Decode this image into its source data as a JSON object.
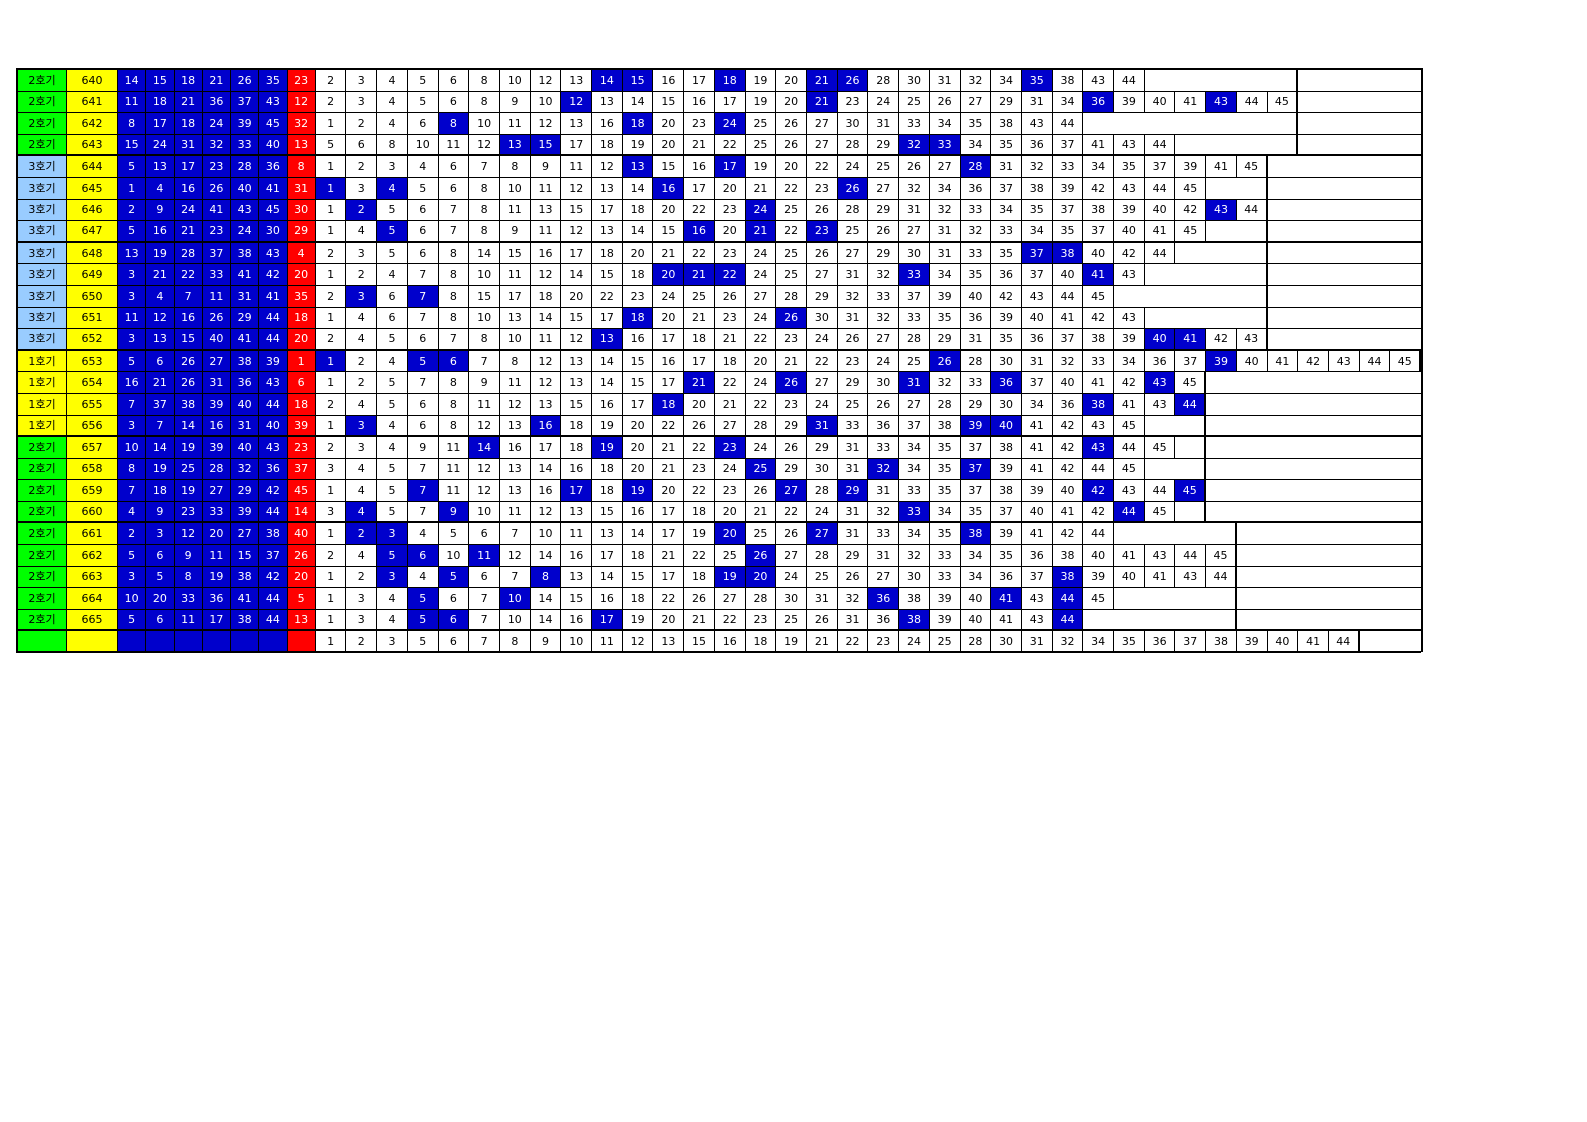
{
  "palette": {
    "machine_1": "#FFFF00",
    "machine_2": "#00FF00",
    "machine_3": "#99CCFF",
    "round_bg": "#FFFF00",
    "win_bg": "#0000CC",
    "bonus_bg": "#FF0000",
    "hl_bg": "#0000CC",
    "grid": "#000000"
  },
  "rows": [
    {
      "machine": "2호기",
      "round": "640",
      "win": [
        14,
        15,
        18,
        21,
        26,
        35
      ],
      "bonus": 23,
      "seq": [
        2,
        3,
        4,
        5,
        6,
        8,
        10,
        12,
        13,
        14,
        15,
        16,
        17,
        18,
        19,
        20,
        21,
        26,
        28,
        30,
        31,
        32,
        34,
        35,
        38,
        43,
        44
      ],
      "hl": [
        14,
        15,
        18,
        21,
        26,
        35
      ],
      "pad": 5,
      "grp_end": false
    },
    {
      "machine": "2호기",
      "round": "641",
      "win": [
        11,
        18,
        21,
        36,
        37,
        43
      ],
      "bonus": 12,
      "seq": [
        2,
        3,
        4,
        5,
        6,
        8,
        9,
        10,
        12,
        13,
        14,
        15,
        16,
        17,
        19,
        20,
        21,
        23,
        24,
        25,
        26,
        27,
        29,
        31,
        34,
        36,
        39,
        40,
        41,
        43,
        44,
        45
      ],
      "hl": [
        12,
        21,
        36,
        43
      ],
      "pad": 0,
      "grp_end": false
    },
    {
      "machine": "2호기",
      "round": "642",
      "win": [
        8,
        17,
        18,
        24,
        39,
        45
      ],
      "bonus": 32,
      "seq": [
        1,
        2,
        4,
        6,
        8,
        10,
        11,
        12,
        13,
        16,
        18,
        20,
        23,
        24,
        25,
        26,
        27,
        30,
        31,
        33,
        34,
        35,
        38,
        43,
        44
      ],
      "hl": [
        8,
        18,
        24
      ],
      "pad": 7,
      "grp_end": false
    },
    {
      "machine": "2호기",
      "round": "643",
      "win": [
        15,
        24,
        31,
        32,
        33,
        40
      ],
      "bonus": 13,
      "seq": [
        5,
        6,
        8,
        10,
        11,
        12,
        13,
        15,
        17,
        18,
        19,
        20,
        21,
        22,
        25,
        26,
        27,
        28,
        29,
        32,
        33,
        34,
        35,
        36,
        37,
        41,
        43,
        44
      ],
      "hl": [
        13,
        15,
        32,
        33
      ],
      "pad": 4,
      "grp_end": true
    },
    {
      "machine": "3호기",
      "round": "644",
      "win": [
        5,
        13,
        17,
        23,
        28,
        36
      ],
      "bonus": 8,
      "seq": [
        1,
        2,
        3,
        4,
        6,
        7,
        8,
        9,
        11,
        12,
        13,
        15,
        16,
        17,
        19,
        20,
        22,
        24,
        25,
        26,
        27,
        28,
        31,
        32,
        33,
        34,
        35,
        37,
        39,
        41,
        45
      ],
      "hl": [
        13,
        17,
        28
      ],
      "pad": 0,
      "grp_end": false
    },
    {
      "machine": "3호기",
      "round": "645",
      "win": [
        1,
        4,
        16,
        26,
        40,
        41
      ],
      "bonus": 31,
      "seq": [
        1,
        3,
        4,
        5,
        6,
        8,
        10,
        11,
        12,
        13,
        14,
        16,
        17,
        20,
        21,
        22,
        23,
        26,
        27,
        32,
        34,
        36,
        37,
        38,
        39,
        42,
        43,
        44,
        45
      ],
      "hl": [
        1,
        4,
        16,
        26
      ],
      "pad": 2,
      "grp_end": false
    },
    {
      "machine": "3호기",
      "round": "646",
      "win": [
        2,
        9,
        24,
        41,
        43,
        45
      ],
      "bonus": 30,
      "seq": [
        1,
        2,
        5,
        6,
        7,
        8,
        11,
        13,
        15,
        17,
        18,
        20,
        22,
        23,
        24,
        25,
        26,
        28,
        29,
        31,
        32,
        33,
        34,
        35,
        37,
        38,
        39,
        40,
        42,
        43,
        44
      ],
      "hl": [
        2,
        24,
        43
      ],
      "pad": 0,
      "grp_end": false
    },
    {
      "machine": "3호기",
      "round": "647",
      "win": [
        5,
        16,
        21,
        23,
        24,
        30
      ],
      "bonus": 29,
      "seq": [
        1,
        4,
        5,
        6,
        7,
        8,
        9,
        11,
        12,
        13,
        14,
        15,
        16,
        20,
        21,
        22,
        23,
        25,
        26,
        27,
        31,
        32,
        33,
        34,
        35,
        37,
        40,
        41,
        45
      ],
      "hl": [
        5,
        16,
        21,
        23
      ],
      "pad": 2,
      "grp_end": true
    },
    {
      "machine": "3호기",
      "round": "648",
      "win": [
        13,
        19,
        28,
        37,
        38,
        43
      ],
      "bonus": 4,
      "seq": [
        2,
        3,
        5,
        6,
        8,
        14,
        15,
        16,
        17,
        18,
        20,
        21,
        22,
        23,
        24,
        25,
        26,
        27,
        29,
        30,
        31,
        33,
        35,
        37,
        38,
        40,
        42,
        44
      ],
      "hl": [
        37,
        38
      ],
      "pad": 3,
      "grp_end": false
    },
    {
      "machine": "3호기",
      "round": "649",
      "win": [
        3,
        21,
        22,
        33,
        41,
        42
      ],
      "bonus": 20,
      "seq": [
        1,
        2,
        4,
        7,
        8,
        10,
        11,
        12,
        14,
        15,
        18,
        20,
        21,
        22,
        24,
        25,
        27,
        31,
        32,
        33,
        34,
        35,
        36,
        37,
        40,
        41,
        43
      ],
      "hl": [
        20,
        21,
        22,
        33,
        41
      ],
      "pad": 4,
      "grp_end": false
    },
    {
      "machine": "3호기",
      "round": "650",
      "win": [
        3,
        4,
        7,
        11,
        31,
        41
      ],
      "bonus": 35,
      "seq": [
        2,
        3,
        6,
        7,
        8,
        15,
        17,
        18,
        20,
        22,
        23,
        24,
        25,
        26,
        27,
        28,
        29,
        32,
        33,
        37,
        39,
        40,
        42,
        43,
        44,
        45
      ],
      "hl": [
        3,
        7
      ],
      "pad": 5,
      "grp_end": false
    },
    {
      "machine": "3호기",
      "round": "651",
      "win": [
        11,
        12,
        16,
        26,
        29,
        44
      ],
      "bonus": 18,
      "seq": [
        1,
        4,
        6,
        7,
        8,
        10,
        13,
        14,
        15,
        17,
        18,
        20,
        21,
        23,
        24,
        26,
        30,
        31,
        32,
        33,
        35,
        36,
        39,
        40,
        41,
        42,
        43
      ],
      "hl": [
        18,
        26
      ],
      "pad": 4,
      "grp_end": false
    },
    {
      "machine": "3호기",
      "round": "652",
      "win": [
        3,
        13,
        15,
        40,
        41,
        44
      ],
      "bonus": 20,
      "seq": [
        2,
        4,
        5,
        6,
        7,
        8,
        10,
        11,
        12,
        13,
        16,
        17,
        18,
        21,
        22,
        23,
        24,
        26,
        27,
        28,
        29,
        31,
        35,
        36,
        37,
        38,
        39,
        40,
        41,
        42,
        43
      ],
      "hl": [
        13,
        40,
        41
      ],
      "pad": 0,
      "grp_end": true
    },
    {
      "machine": "1호기",
      "round": "653",
      "win": [
        5,
        6,
        26,
        27,
        38,
        39
      ],
      "bonus": 1,
      "seq": [
        1,
        2,
        4,
        5,
        6,
        7,
        8,
        12,
        13,
        14,
        15,
        16,
        17,
        18,
        20,
        21,
        22,
        23,
        24,
        25,
        26,
        28,
        30,
        31,
        32,
        33,
        34,
        36,
        37,
        39,
        40,
        41,
        42,
        43,
        44,
        45
      ],
      "hl": [
        1,
        5,
        6,
        26,
        39
      ],
      "pad": 0,
      "grp_end": false
    },
    {
      "machine": "1호기",
      "round": "654",
      "win": [
        16,
        21,
        26,
        31,
        36,
        43
      ],
      "bonus": 6,
      "seq": [
        1,
        2,
        5,
        7,
        8,
        9,
        11,
        12,
        13,
        14,
        15,
        17,
        21,
        22,
        24,
        26,
        27,
        29,
        30,
        31,
        32,
        33,
        36,
        37,
        40,
        41,
        42,
        43,
        45
      ],
      "hl": [
        21,
        26,
        31,
        36,
        43
      ],
      "pad": 0,
      "grp_end": false
    },
    {
      "machine": "1호기",
      "round": "655",
      "win": [
        7,
        37,
        38,
        39,
        40,
        44
      ],
      "bonus": 18,
      "seq": [
        2,
        4,
        5,
        6,
        8,
        11,
        12,
        13,
        15,
        16,
        17,
        18,
        20,
        21,
        22,
        23,
        24,
        25,
        26,
        27,
        28,
        29,
        30,
        34,
        36,
        38,
        41,
        43,
        44
      ],
      "hl": [
        18,
        38,
        44
      ],
      "pad": 0,
      "grp_end": false
    },
    {
      "machine": "1호기",
      "round": "656",
      "win": [
        3,
        7,
        14,
        16,
        31,
        40
      ],
      "bonus": 39,
      "seq": [
        1,
        3,
        4,
        6,
        8,
        12,
        13,
        16,
        18,
        19,
        20,
        22,
        26,
        27,
        28,
        29,
        31,
        33,
        36,
        37,
        38,
        39,
        40,
        41,
        42,
        43,
        45
      ],
      "hl": [
        3,
        16,
        31,
        39,
        40
      ],
      "pad": 2,
      "grp_end": true
    },
    {
      "machine": "2호기",
      "round": "657",
      "win": [
        10,
        14,
        19,
        39,
        40,
        43
      ],
      "bonus": 23,
      "seq": [
        2,
        3,
        4,
        9,
        11,
        14,
        16,
        17,
        18,
        19,
        20,
        21,
        22,
        23,
        24,
        26,
        29,
        31,
        33,
        34,
        35,
        37,
        38,
        41,
        42,
        43,
        44,
        45
      ],
      "hl": [
        14,
        19,
        23,
        43
      ],
      "pad": 1,
      "grp_end": false
    },
    {
      "machine": "2호기",
      "round": "658",
      "win": [
        8,
        19,
        25,
        28,
        32,
        36
      ],
      "bonus": 37,
      "seq": [
        3,
        4,
        5,
        7,
        11,
        12,
        13,
        14,
        16,
        18,
        20,
        21,
        23,
        24,
        25,
        29,
        30,
        31,
        32,
        34,
        35,
        37,
        39,
        41,
        42,
        44,
        45
      ],
      "hl": [
        25,
        32,
        37
      ],
      "pad": 2,
      "grp_end": false
    },
    {
      "machine": "2호기",
      "round": "659",
      "win": [
        7,
        18,
        19,
        27,
        29,
        42
      ],
      "bonus": 45,
      "seq": [
        1,
        4,
        5,
        7,
        11,
        12,
        13,
        16,
        17,
        18,
        19,
        20,
        22,
        23,
        26,
        27,
        28,
        29,
        31,
        33,
        35,
        37,
        38,
        39,
        40,
        42,
        43,
        44,
        45
      ],
      "hl": [
        7,
        17,
        19,
        27,
        29,
        42,
        45
      ],
      "pad": 0,
      "grp_end": false
    },
    {
      "machine": "2호기",
      "round": "660",
      "win": [
        4,
        9,
        23,
        33,
        39,
        44
      ],
      "bonus": 14,
      "seq": [
        3,
        4,
        5,
        7,
        9,
        10,
        11,
        12,
        13,
        15,
        16,
        17,
        18,
        20,
        21,
        22,
        24,
        31,
        32,
        33,
        34,
        35,
        37,
        40,
        41,
        42,
        44,
        45
      ],
      "hl": [
        4,
        9,
        33,
        44
      ],
      "pad": 1,
      "grp_end": true
    },
    {
      "machine": "2호기",
      "round": "661",
      "win": [
        2,
        3,
        12,
        20,
        27,
        38
      ],
      "bonus": 40,
      "seq": [
        1,
        2,
        3,
        4,
        5,
        6,
        7,
        10,
        11,
        13,
        14,
        17,
        19,
        20,
        25,
        26,
        27,
        31,
        33,
        34,
        35,
        38,
        39,
        41,
        42,
        44
      ],
      "hl": [
        2,
        3,
        20,
        27,
        38
      ],
      "pad": 4,
      "grp_end": false
    },
    {
      "machine": "2호기",
      "round": "662",
      "win": [
        5,
        6,
        9,
        11,
        15,
        37
      ],
      "bonus": 26,
      "seq": [
        2,
        4,
        5,
        6,
        10,
        11,
        12,
        14,
        16,
        17,
        18,
        21,
        22,
        25,
        26,
        27,
        28,
        29,
        31,
        32,
        33,
        34,
        35,
        36,
        38,
        40,
        41,
        43,
        44,
        45
      ],
      "hl": [
        5,
        6,
        11,
        26
      ],
      "pad": 0,
      "grp_end": false
    },
    {
      "machine": "2호기",
      "round": "663",
      "win": [
        3,
        5,
        8,
        19,
        38,
        42
      ],
      "bonus": 20,
      "seq": [
        1,
        2,
        3,
        4,
        5,
        6,
        7,
        8,
        13,
        14,
        15,
        17,
        18,
        19,
        20,
        24,
        25,
        26,
        27,
        30,
        33,
        34,
        36,
        37,
        38,
        39,
        40,
        41,
        43,
        44
      ],
      "hl": [
        3,
        5,
        8,
        19,
        20,
        38
      ],
      "pad": 0,
      "grp_end": false
    },
    {
      "machine": "2호기",
      "round": "664",
      "win": [
        10,
        20,
        33,
        36,
        41,
        44
      ],
      "bonus": 5,
      "seq": [
        1,
        3,
        4,
        5,
        6,
        7,
        10,
        14,
        15,
        16,
        18,
        22,
        26,
        27,
        28,
        30,
        31,
        32,
        36,
        38,
        39,
        40,
        41,
        43,
        44,
        45
      ],
      "hl": [
        5,
        10,
        36,
        41,
        44
      ],
      "pad": 4,
      "grp_end": false
    },
    {
      "machine": "2호기",
      "round": "665",
      "win": [
        5,
        6,
        11,
        17,
        38,
        44
      ],
      "bonus": 13,
      "seq": [
        1,
        3,
        4,
        5,
        6,
        7,
        10,
        14,
        16,
        17,
        19,
        20,
        21,
        22,
        23,
        25,
        26,
        31,
        36,
        38,
        39,
        40,
        41,
        43,
        44
      ],
      "hl": [
        5,
        6,
        17,
        38,
        44
      ],
      "pad": 5,
      "grp_end": true
    },
    {
      "machine": "",
      "round": "",
      "win": [
        "",
        "",
        "",
        "",
        "",
        ""
      ],
      "bonus": "",
      "seq": [
        1,
        2,
        3,
        5,
        6,
        7,
        8,
        9,
        10,
        11,
        12,
        13,
        15,
        16,
        18,
        19,
        21,
        22,
        23,
        24,
        25,
        28,
        30,
        31,
        32,
        34,
        35,
        36,
        37,
        38,
        39,
        40,
        41,
        44
      ],
      "hl": [],
      "pad": 0,
      "grp_end": true,
      "footer": true
    }
  ]
}
